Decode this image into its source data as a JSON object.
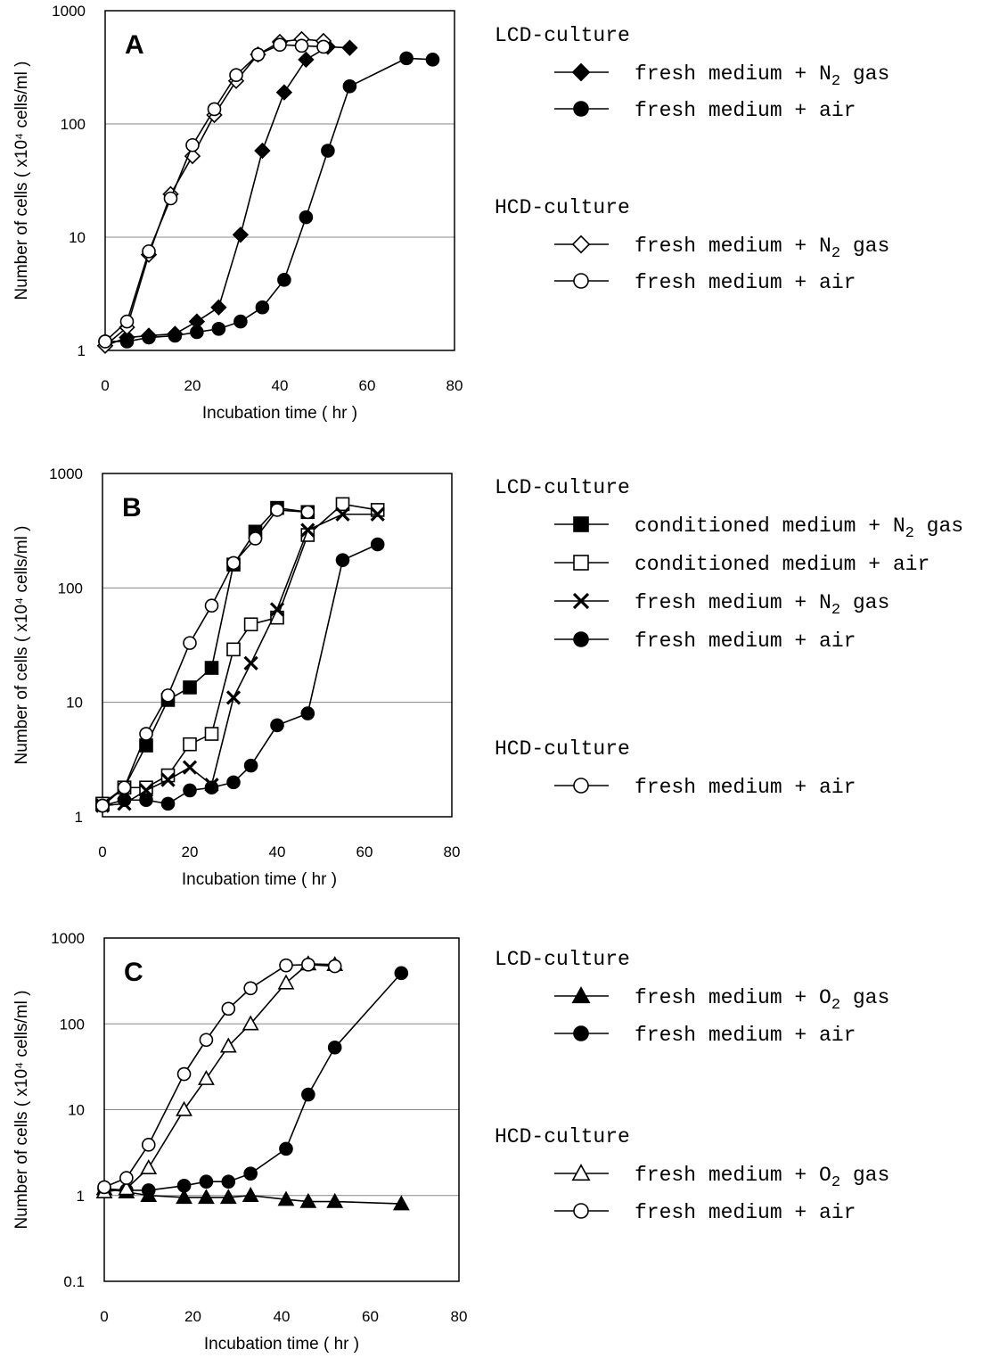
{
  "chart_data": [
    {
      "type": "scatter",
      "panel_label": "A",
      "xlabel": "Incubation time ( hr )",
      "ylabel": "Number of cells ( x10⁴ cells/ml )",
      "xlim": [
        0,
        80
      ],
      "ylim": [
        1,
        1000
      ],
      "yscale": "log",
      "xticks": [
        "0",
        "20",
        "40",
        "60",
        "80"
      ],
      "yticks": [
        "1",
        "10",
        "100",
        "1000"
      ],
      "grid": "horizontal",
      "legend_position": "right",
      "legend_groups": [
        {
          "title": "LCD-culture",
          "entries": [
            {
              "text": "fresh medium + N",
              "sub": "2",
              "tail": " gas",
              "marker": "diamond-filled"
            },
            {
              "text": "fresh medium + air",
              "sub": "",
              "tail": "",
              "marker": "circle-filled"
            }
          ]
        },
        {
          "title": "HCD-culture",
          "entries": [
            {
              "text": "fresh medium + N",
              "sub": "2",
              "tail": " gas",
              "marker": "diamond-open"
            },
            {
              "text": "fresh medium + air",
              "sub": "",
              "tail": "",
              "marker": "circle-open"
            }
          ]
        }
      ],
      "series": [
        {
          "marker": "diamond-filled",
          "x": [
            0,
            5,
            10,
            16,
            21,
            26,
            31,
            36,
            41,
            46,
            51,
            56
          ],
          "y": [
            1.1,
            1.3,
            1.35,
            1.4,
            1.8,
            2.4,
            10.5,
            58,
            190,
            370,
            480,
            470
          ]
        },
        {
          "marker": "circle-filled",
          "x": [
            0,
            5,
            10,
            16,
            21,
            26,
            31,
            36,
            41,
            46,
            51,
            56,
            69,
            75
          ],
          "y": [
            1.2,
            1.2,
            1.3,
            1.35,
            1.45,
            1.55,
            1.8,
            2.4,
            4.2,
            15,
            58,
            215,
            380,
            370
          ]
        },
        {
          "marker": "diamond-open",
          "x": [
            0,
            5,
            10,
            15,
            20,
            25,
            30,
            35,
            40,
            45,
            50
          ],
          "y": [
            1.1,
            1.6,
            7,
            24,
            52,
            120,
            240,
            410,
            530,
            560,
            540
          ]
        },
        {
          "marker": "circle-open",
          "x": [
            0,
            5,
            10,
            15,
            20,
            25,
            30,
            35,
            40,
            45,
            50
          ],
          "y": [
            1.2,
            1.8,
            7.5,
            22,
            65,
            135,
            270,
            410,
            500,
            490,
            480
          ]
        }
      ]
    },
    {
      "type": "scatter",
      "panel_label": "B",
      "xlabel": "Incubation time ( hr )",
      "ylabel": "Number of cells ( x10⁴ cells/ml )",
      "xlim": [
        0,
        80
      ],
      "ylim": [
        1,
        1000
      ],
      "yscale": "log",
      "xticks": [
        "0",
        "20",
        "40",
        "60",
        "80"
      ],
      "yticks": [
        "1",
        "10",
        "100",
        "1000"
      ],
      "grid": "horizontal",
      "legend_position": "right",
      "legend_groups": [
        {
          "title": "LCD-culture",
          "entries": [
            {
              "text": "conditioned medium + N",
              "sub": "2",
              "tail": " gas",
              "marker": "square-filled"
            },
            {
              "text": "conditioned medium + air",
              "sub": "",
              "tail": "",
              "marker": "square-open"
            },
            {
              "text": "fresh medium + N",
              "sub": "2",
              "tail": " gas",
              "marker": "cross"
            },
            {
              "text": "fresh medium + air",
              "sub": "",
              "tail": "",
              "marker": "circle-filled"
            }
          ]
        },
        {
          "title": "HCD-culture",
          "entries": [
            {
              "text": "fresh medium + air",
              "sub": "",
              "tail": "",
              "marker": "circle-open"
            }
          ]
        }
      ],
      "series": [
        {
          "marker": "square-filled",
          "x": [
            0,
            5,
            10,
            15,
            20,
            25,
            30,
            35,
            40,
            47
          ],
          "y": [
            1.3,
            1.8,
            4.2,
            10.5,
            13.5,
            20,
            160,
            310,
            500,
            460
          ]
        },
        {
          "marker": "square-open",
          "x": [
            0,
            5,
            10,
            15,
            20,
            25,
            30,
            34,
            40,
            47,
            55,
            63
          ],
          "y": [
            1.3,
            1.8,
            1.8,
            2.3,
            4.3,
            5.3,
            29,
            48,
            55,
            290,
            540,
            480
          ]
        },
        {
          "marker": "cross",
          "x": [
            0,
            5,
            10,
            15,
            20,
            25,
            30,
            34,
            40,
            47,
            55,
            63
          ],
          "y": [
            1.25,
            1.3,
            1.7,
            2.1,
            2.7,
            1.9,
            11,
            22,
            65,
            320,
            440,
            440
          ]
        },
        {
          "marker": "circle-filled",
          "x": [
            0,
            5,
            10,
            15,
            20,
            25,
            30,
            34,
            40,
            47,
            55,
            63
          ],
          "y": [
            1.25,
            1.4,
            1.4,
            1.3,
            1.7,
            1.8,
            2.0,
            2.8,
            6.3,
            8.0,
            175,
            240
          ]
        },
        {
          "marker": "circle-open",
          "x": [
            0,
            5,
            10,
            15,
            20,
            25,
            30,
            35,
            40,
            47
          ],
          "y": [
            1.25,
            1.8,
            5.3,
            11.5,
            33,
            70,
            165,
            270,
            480,
            460
          ]
        }
      ]
    },
    {
      "type": "scatter",
      "panel_label": "C",
      "xlabel": "Incubation time ( hr )",
      "ylabel": "Number of cells ( x10⁴ cells/ml )",
      "xlim": [
        0,
        80
      ],
      "ylim": [
        0.1,
        1000
      ],
      "yscale": "log",
      "xticks": [
        "0",
        "20",
        "40",
        "60",
        "80"
      ],
      "yticks": [
        "0.1",
        "1",
        "10",
        "100",
        "1000"
      ],
      "grid": "horizontal",
      "legend_position": "right",
      "legend_groups": [
        {
          "title": "LCD-culture",
          "entries": [
            {
              "text": "fresh medium + O",
              "sub": "2",
              "tail": " gas",
              "marker": "triangle-filled"
            },
            {
              "text": "fresh medium + air",
              "sub": "",
              "tail": "",
              "marker": "circle-filled"
            }
          ]
        },
        {
          "title": "HCD-culture",
          "entries": [
            {
              "text": "fresh medium + O",
              "sub": "2",
              "tail": " gas",
              "marker": "triangle-open"
            },
            {
              "text": "fresh medium + air",
              "sub": "",
              "tail": "",
              "marker": "circle-open"
            }
          ]
        }
      ],
      "series": [
        {
          "marker": "triangle-filled",
          "x": [
            0,
            5,
            10,
            18,
            23,
            28,
            33,
            41,
            46,
            52,
            67
          ],
          "y": [
            1.2,
            1.1,
            1.0,
            0.95,
            0.95,
            0.95,
            1.0,
            0.9,
            0.85,
            0.85,
            0.8
          ]
        },
        {
          "marker": "circle-filled",
          "x": [
            0,
            5,
            10,
            18,
            23,
            28,
            33,
            41,
            46,
            52,
            67
          ],
          "y": [
            1.2,
            1.15,
            1.15,
            1.3,
            1.45,
            1.45,
            1.8,
            3.5,
            15,
            53,
            390
          ]
        },
        {
          "marker": "triangle-open",
          "x": [
            0,
            5,
            10,
            18,
            23,
            28,
            33,
            41,
            46,
            52
          ],
          "y": [
            1.1,
            1.2,
            2.1,
            10,
            23,
            55,
            100,
            300,
            500,
            490
          ]
        },
        {
          "marker": "circle-open",
          "x": [
            0,
            5,
            10,
            18,
            23,
            28,
            33,
            41,
            46,
            52
          ],
          "y": [
            1.25,
            1.6,
            3.9,
            26,
            65,
            150,
            260,
            480,
            490,
            470
          ]
        }
      ]
    }
  ]
}
